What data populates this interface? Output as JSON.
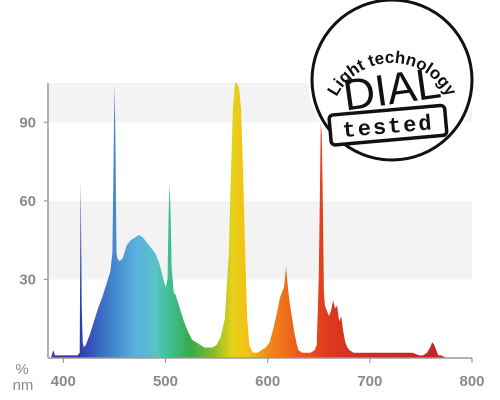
{
  "chart_data": {
    "type": "area",
    "title": "",
    "xlabel": "nm",
    "ylabel": "%",
    "xlim": [
      385,
      800
    ],
    "ylim": [
      0,
      105
    ],
    "x_ticks": [
      400,
      500,
      600,
      700,
      800
    ],
    "y_ticks": [
      30,
      60,
      90
    ],
    "grid": "alternating horizontal bands",
    "legend": "none",
    "fill": "visible-spectrum color gradient by wavelength",
    "series": [
      {
        "x": [
          388,
          390,
          392,
          396,
          400,
          405,
          410,
          414,
          416,
          417,
          418,
          419,
          420,
          422,
          426,
          430,
          434,
          438,
          442,
          446,
          448,
          449,
          450,
          451,
          452,
          453,
          455,
          458,
          462,
          466,
          470,
          474,
          478,
          482,
          486,
          490,
          494,
          498,
          500,
          502,
          503,
          504,
          505,
          506,
          508,
          510,
          514,
          518,
          522,
          526,
          530,
          534,
          538,
          542,
          546,
          550,
          554,
          558,
          562,
          564,
          566,
          568,
          570,
          572,
          574,
          576,
          578,
          580,
          582,
          584,
          586,
          588,
          590,
          594,
          598,
          602,
          606,
          610,
          612,
          614,
          616,
          618,
          620,
          622,
          624,
          626,
          628,
          630,
          634,
          638,
          642,
          646,
          648,
          650,
          651,
          652,
          653,
          654,
          655,
          656,
          658,
          660,
          662,
          664,
          666,
          668,
          670,
          672,
          674,
          676,
          678,
          680,
          684,
          688,
          692,
          696,
          700,
          706,
          712,
          718,
          724,
          730,
          736,
          742,
          748,
          752,
          756,
          759,
          761,
          763,
          765,
          767,
          770,
          775
        ],
        "y": [
          0,
          3,
          1,
          1,
          1,
          1,
          1,
          1,
          2,
          68,
          20,
          6,
          4,
          5,
          9,
          14,
          19,
          23,
          28,
          33,
          40,
          70,
          105,
          85,
          40,
          38,
          37,
          38,
          43,
          45,
          46,
          47,
          46,
          44,
          42,
          40,
          36,
          30,
          27,
          30,
          55,
          67,
          55,
          35,
          25,
          24,
          19,
          14,
          10,
          7,
          6,
          5,
          4,
          4,
          4,
          5,
          8,
          15,
          40,
          70,
          95,
          105,
          105,
          103,
          95,
          70,
          40,
          15,
          5,
          3,
          2,
          2,
          2,
          3,
          4,
          6,
          12,
          19,
          23,
          25,
          27,
          35,
          26,
          20,
          15,
          10,
          6,
          3,
          2,
          2,
          2,
          3,
          5,
          30,
          60,
          90,
          85,
          60,
          25,
          20,
          18,
          16,
          18,
          22,
          19,
          20,
          14,
          16,
          10,
          6,
          4,
          3,
          2,
          2,
          2,
          2,
          2,
          2,
          2,
          2,
          2,
          2,
          2,
          2,
          1,
          1,
          2,
          4,
          6,
          5,
          3,
          1,
          1,
          0
        ]
      }
    ]
  },
  "stamp": {
    "arc_text": "Light technology",
    "brand": "DIAL",
    "badge": "tested"
  }
}
